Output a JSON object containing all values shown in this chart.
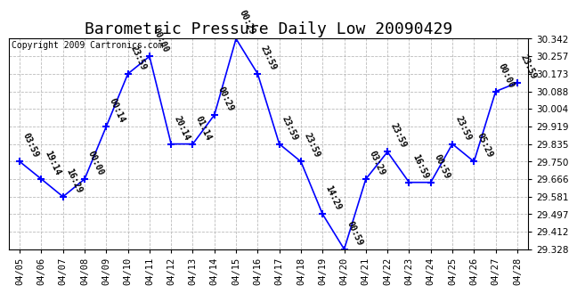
{
  "title": "Barometric Pressure Daily Low 20090429",
  "copyright": "Copyright 2009 Cartronics.com",
  "dates": [
    "04/05",
    "04/06",
    "04/07",
    "04/08",
    "04/09",
    "04/10",
    "04/11",
    "04/12",
    "04/13",
    "04/14",
    "04/15",
    "04/16",
    "04/17",
    "04/18",
    "04/19",
    "04/20",
    "04/21",
    "04/22",
    "04/23",
    "04/24",
    "04/25",
    "04/26",
    "04/27",
    "04/28"
  ],
  "values": [
    29.75,
    29.666,
    29.581,
    29.666,
    29.919,
    30.173,
    30.257,
    29.835,
    29.835,
    29.975,
    30.342,
    30.173,
    29.835,
    29.75,
    29.497,
    29.328,
    29.666,
    29.797,
    29.65,
    29.65,
    29.835,
    29.75,
    30.088,
    30.13
  ],
  "time_labels": [
    "03:59",
    "19:14",
    "16:29",
    "00:00",
    "00:14",
    "23:59",
    "00:00",
    "20:14",
    "01:14",
    "00:29",
    "00:29",
    "23:59",
    "23:59",
    "23:59",
    "14:29",
    "00:59",
    "03:29",
    "23:59",
    "16:59",
    "00:59",
    "23:59",
    "05:29",
    "00:00",
    "23:59"
  ],
  "ylim_min": 29.328,
  "ylim_max": 30.342,
  "yticks": [
    29.328,
    29.412,
    29.497,
    29.581,
    29.666,
    29.75,
    29.835,
    29.919,
    30.004,
    30.088,
    30.173,
    30.257,
    30.342
  ],
  "line_color": "blue",
  "marker_color": "blue",
  "background_color": "#ffffff",
  "grid_color": "#bbbbbb",
  "title_fontsize": 13,
  "tick_fontsize": 7.5,
  "annotation_fontsize": 7.0,
  "annotation_rotation": -65
}
